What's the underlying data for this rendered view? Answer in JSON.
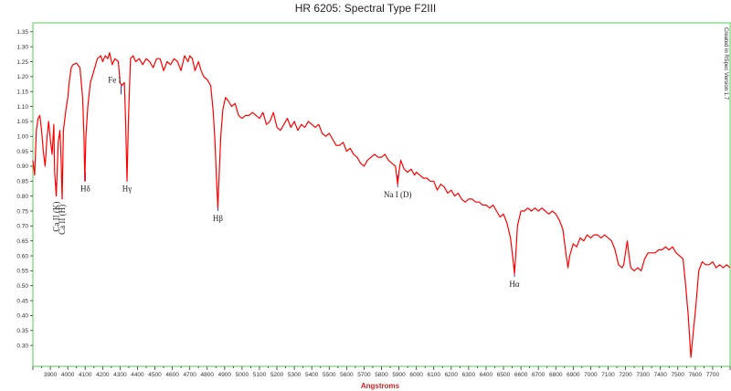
{
  "chart_data": {
    "type": "line",
    "title": "HR 6205: Spectral Type F2III",
    "xlabel": "Angstroms",
    "ylabel": "",
    "side_note": "Created in RSpec Version 1.7",
    "xlim": [
      3800,
      7800
    ],
    "ylim": [
      0.23,
      1.38
    ],
    "grid": false,
    "legend": "none",
    "colors": {
      "line": "#ff0000",
      "marker": "#3333cc",
      "frame": "#55cc55",
      "xlabel": "#cc2222"
    },
    "x_ticks": [
      3900,
      4000,
      4100,
      4200,
      4300,
      4400,
      4500,
      4600,
      4700,
      4800,
      4900,
      5000,
      5100,
      5200,
      5300,
      5400,
      5500,
      5600,
      5700,
      5800,
      5900,
      6000,
      6100,
      6200,
      6300,
      6400,
      6500,
      6600,
      6700,
      6800,
      6900,
      7000,
      7100,
      7200,
      7300,
      7400,
      7500,
      7600,
      7700
    ],
    "y_ticks": [
      "0.30",
      "0.35",
      "0.40",
      "0.45",
      "0.50",
      "0.55",
      "0.60",
      "0.65",
      "0.70",
      "0.75",
      "0.80",
      "0.85",
      "0.90",
      "0.95",
      "1.00",
      "1.05",
      "1.10",
      "1.15",
      "1.20",
      "1.25",
      "1.30",
      "1.35"
    ],
    "series": [
      {
        "points": [
          [
            3800,
            0.92
          ],
          [
            3810,
            0.87
          ],
          [
            3820,
            1.02
          ],
          [
            3830,
            1.06
          ],
          [
            3840,
            1.07
          ],
          [
            3850,
            1.02
          ],
          [
            3860,
            0.95
          ],
          [
            3870,
            0.9
          ],
          [
            3880,
            0.99
          ],
          [
            3890,
            1.05
          ],
          [
            3900,
            0.99
          ],
          [
            3910,
            0.94
          ],
          [
            3920,
            1.04
          ],
          [
            3925,
            0.88
          ],
          [
            3934,
            0.8
          ],
          [
            3945,
            0.98
          ],
          [
            3955,
            1.02
          ],
          [
            3962,
            0.92
          ],
          [
            3968,
            0.79
          ],
          [
            3975,
            1.02
          ],
          [
            3990,
            1.09
          ],
          [
            4000,
            1.13
          ],
          [
            4010,
            1.19
          ],
          [
            4020,
            1.23
          ],
          [
            4030,
            1.24
          ],
          [
            4050,
            1.245
          ],
          [
            4070,
            1.23
          ],
          [
            4085,
            1.13
          ],
          [
            4093,
            1.0
          ],
          [
            4098,
            0.85
          ],
          [
            4104,
            1.0
          ],
          [
            4115,
            1.1
          ],
          [
            4130,
            1.18
          ],
          [
            4150,
            1.22
          ],
          [
            4170,
            1.26
          ],
          [
            4190,
            1.27
          ],
          [
            4200,
            1.25
          ],
          [
            4215,
            1.27
          ],
          [
            4230,
            1.26
          ],
          [
            4240,
            1.28
          ],
          [
            4255,
            1.24
          ],
          [
            4270,
            1.26
          ],
          [
            4290,
            1.25
          ],
          [
            4300,
            1.18
          ],
          [
            4310,
            1.17
          ],
          [
            4325,
            1.18
          ],
          [
            4332,
            1.05
          ],
          [
            4340,
            0.85
          ],
          [
            4348,
            1.05
          ],
          [
            4360,
            1.26
          ],
          [
            4375,
            1.27
          ],
          [
            4390,
            1.25
          ],
          [
            4410,
            1.26
          ],
          [
            4430,
            1.24
          ],
          [
            4450,
            1.26
          ],
          [
            4470,
            1.25
          ],
          [
            4490,
            1.23
          ],
          [
            4510,
            1.26
          ],
          [
            4530,
            1.26
          ],
          [
            4550,
            1.22
          ],
          [
            4570,
            1.25
          ],
          [
            4590,
            1.24
          ],
          [
            4610,
            1.26
          ],
          [
            4630,
            1.25
          ],
          [
            4650,
            1.22
          ],
          [
            4670,
            1.27
          ],
          [
            4690,
            1.25
          ],
          [
            4700,
            1.27
          ],
          [
            4715,
            1.26
          ],
          [
            4730,
            1.22
          ],
          [
            4750,
            1.25
          ],
          [
            4765,
            1.22
          ],
          [
            4780,
            1.2
          ],
          [
            4800,
            1.19
          ],
          [
            4820,
            1.17
          ],
          [
            4835,
            1.08
          ],
          [
            4845,
            0.98
          ],
          [
            4853,
            0.86
          ],
          [
            4861,
            0.76
          ],
          [
            4868,
            0.86
          ],
          [
            4878,
            1.0
          ],
          [
            4890,
            1.09
          ],
          [
            4905,
            1.13
          ],
          [
            4920,
            1.12
          ],
          [
            4940,
            1.1
          ],
          [
            4960,
            1.11
          ],
          [
            4980,
            1.07
          ],
          [
            5000,
            1.06
          ],
          [
            5020,
            1.07
          ],
          [
            5040,
            1.07
          ],
          [
            5060,
            1.08
          ],
          [
            5080,
            1.07
          ],
          [
            5100,
            1.06
          ],
          [
            5120,
            1.08
          ],
          [
            5140,
            1.04
          ],
          [
            5160,
            1.05
          ],
          [
            5180,
            1.08
          ],
          [
            5200,
            1.03
          ],
          [
            5220,
            1.02
          ],
          [
            5240,
            1.04
          ],
          [
            5260,
            1.06
          ],
          [
            5280,
            1.03
          ],
          [
            5300,
            1.05
          ],
          [
            5320,
            1.02
          ],
          [
            5340,
            1.04
          ],
          [
            5360,
            1.03
          ],
          [
            5380,
            1.05
          ],
          [
            5400,
            1.04
          ],
          [
            5420,
            1.03
          ],
          [
            5440,
            1.04
          ],
          [
            5460,
            1.01
          ],
          [
            5480,
            1.0
          ],
          [
            5500,
            1.01
          ],
          [
            5520,
            0.99
          ],
          [
            5540,
            0.97
          ],
          [
            5560,
            0.97
          ],
          [
            5580,
            0.98
          ],
          [
            5600,
            0.95
          ],
          [
            5620,
            0.96
          ],
          [
            5640,
            0.94
          ],
          [
            5660,
            0.93
          ],
          [
            5680,
            0.91
          ],
          [
            5700,
            0.9
          ],
          [
            5720,
            0.92
          ],
          [
            5740,
            0.93
          ],
          [
            5760,
            0.94
          ],
          [
            5780,
            0.93
          ],
          [
            5800,
            0.93
          ],
          [
            5820,
            0.94
          ],
          [
            5840,
            0.92
          ],
          [
            5860,
            0.91
          ],
          [
            5880,
            0.9
          ],
          [
            5893,
            0.84
          ],
          [
            5900,
            0.88
          ],
          [
            5910,
            0.92
          ],
          [
            5930,
            0.89
          ],
          [
            5950,
            0.88
          ],
          [
            5970,
            0.89
          ],
          [
            5990,
            0.87
          ],
          [
            6000,
            0.88
          ],
          [
            6020,
            0.87
          ],
          [
            6040,
            0.86
          ],
          [
            6060,
            0.86
          ],
          [
            6080,
            0.85
          ],
          [
            6100,
            0.85
          ],
          [
            6120,
            0.82
          ],
          [
            6140,
            0.84
          ],
          [
            6160,
            0.83
          ],
          [
            6180,
            0.81
          ],
          [
            6200,
            0.82
          ],
          [
            6220,
            0.8
          ],
          [
            6240,
            0.81
          ],
          [
            6260,
            0.79
          ],
          [
            6280,
            0.78
          ],
          [
            6300,
            0.79
          ],
          [
            6320,
            0.79
          ],
          [
            6340,
            0.78
          ],
          [
            6360,
            0.78
          ],
          [
            6380,
            0.77
          ],
          [
            6400,
            0.77
          ],
          [
            6420,
            0.76
          ],
          [
            6440,
            0.77
          ],
          [
            6460,
            0.75
          ],
          [
            6480,
            0.73
          ],
          [
            6500,
            0.74
          ],
          [
            6520,
            0.71
          ],
          [
            6540,
            0.66
          ],
          [
            6556,
            0.58
          ],
          [
            6563,
            0.54
          ],
          [
            6570,
            0.6
          ],
          [
            6580,
            0.7
          ],
          [
            6600,
            0.75
          ],
          [
            6620,
            0.75
          ],
          [
            6640,
            0.76
          ],
          [
            6660,
            0.75
          ],
          [
            6680,
            0.76
          ],
          [
            6700,
            0.75
          ],
          [
            6720,
            0.76
          ],
          [
            6740,
            0.75
          ],
          [
            6760,
            0.74
          ],
          [
            6780,
            0.75
          ],
          [
            6800,
            0.74
          ],
          [
            6820,
            0.72
          ],
          [
            6840,
            0.69
          ],
          [
            6860,
            0.6
          ],
          [
            6870,
            0.56
          ],
          [
            6880,
            0.6
          ],
          [
            6900,
            0.64
          ],
          [
            6920,
            0.63
          ],
          [
            6940,
            0.66
          ],
          [
            6960,
            0.65
          ],
          [
            6980,
            0.67
          ],
          [
            7000,
            0.66
          ],
          [
            7020,
            0.67
          ],
          [
            7040,
            0.67
          ],
          [
            7060,
            0.66
          ],
          [
            7080,
            0.67
          ],
          [
            7100,
            0.66
          ],
          [
            7120,
            0.65
          ],
          [
            7140,
            0.62
          ],
          [
            7160,
            0.57
          ],
          [
            7180,
            0.56
          ],
          [
            7190,
            0.57
          ],
          [
            7200,
            0.61
          ],
          [
            7210,
            0.65
          ],
          [
            7220,
            0.6
          ],
          [
            7230,
            0.56
          ],
          [
            7250,
            0.55
          ],
          [
            7270,
            0.56
          ],
          [
            7290,
            0.55
          ],
          [
            7310,
            0.59
          ],
          [
            7330,
            0.61
          ],
          [
            7350,
            0.61
          ],
          [
            7370,
            0.61
          ],
          [
            7390,
            0.62
          ],
          [
            7410,
            0.62
          ],
          [
            7430,
            0.63
          ],
          [
            7450,
            0.62
          ],
          [
            7470,
            0.63
          ],
          [
            7490,
            0.61
          ],
          [
            7510,
            0.6
          ],
          [
            7530,
            0.59
          ],
          [
            7545,
            0.5
          ],
          [
            7560,
            0.4
          ],
          [
            7575,
            0.26
          ],
          [
            7590,
            0.35
          ],
          [
            7605,
            0.44
          ],
          [
            7620,
            0.55
          ],
          [
            7640,
            0.58
          ],
          [
            7660,
            0.57
          ],
          [
            7680,
            0.57
          ],
          [
            7700,
            0.58
          ],
          [
            7720,
            0.56
          ],
          [
            7740,
            0.57
          ],
          [
            7760,
            0.56
          ],
          [
            7780,
            0.57
          ],
          [
            7800,
            0.56
          ]
        ]
      }
    ],
    "annotations": [
      {
        "label": "Ca II (K)",
        "x": 3934,
        "y_tip": 0.8,
        "marker_top": 0.845,
        "rotated": true
      },
      {
        "label": "Ca II (H)",
        "x": 3968,
        "y_tip": 0.79,
        "marker_top": 0.835,
        "rotated": true
      },
      {
        "label": "Hδ",
        "x": 4101,
        "y_tip": 0.85,
        "marker_top": 0.88,
        "rotated": false
      },
      {
        "label": "Fe I",
        "x": 4306,
        "y_tip": 1.14,
        "marker_top": 1.17,
        "rotated": false
      },
      {
        "label": "Hγ",
        "x": 4340,
        "y_tip": 0.85,
        "marker_top": 0.88,
        "rotated": false
      },
      {
        "label": "Hβ",
        "x": 4861,
        "y_tip": 0.75,
        "marker_top": 0.79,
        "rotated": false
      },
      {
        "label": "Na I (D)",
        "x": 5893,
        "y_tip": 0.83,
        "marker_top": 0.87,
        "rotated": false
      },
      {
        "label": "Hα",
        "x": 6563,
        "y_tip": 0.53,
        "marker_top": 0.57,
        "rotated": false
      }
    ]
  }
}
